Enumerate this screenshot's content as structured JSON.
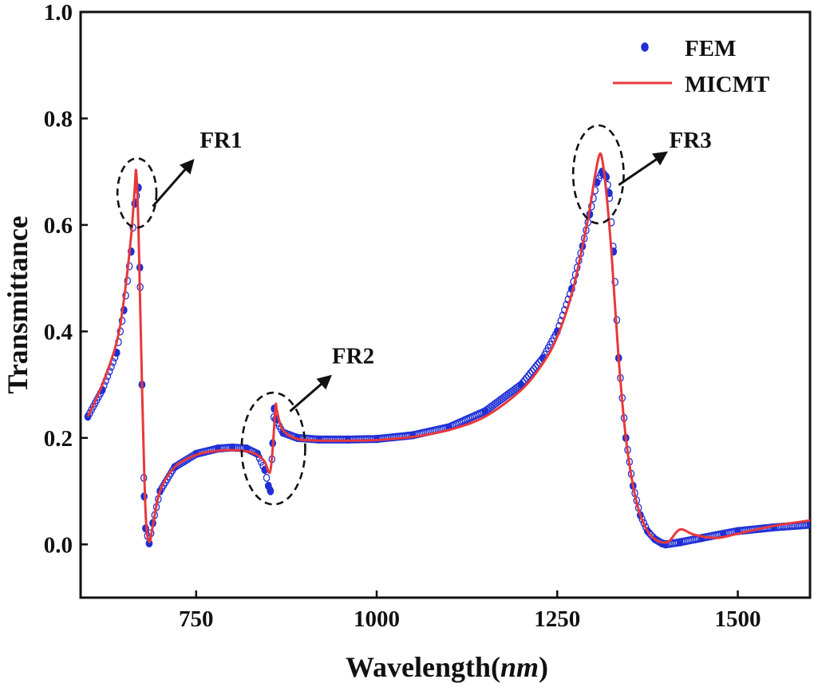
{
  "chart_data": {
    "type": "line",
    "title": "",
    "xlabel_prefix": "Wavelength(",
    "xlabel_unit": "nm",
    "xlabel_suffix": ")",
    "ylabel": "Transmittance",
    "xlim": [
      590,
      1600
    ],
    "ylim": [
      -0.1,
      1.0
    ],
    "xticks": [
      750,
      1000,
      1250,
      1500
    ],
    "xtick_labels": [
      "750",
      "1000",
      "1250",
      "1500"
    ],
    "yticks": [
      0.0,
      0.2,
      0.4,
      0.6,
      0.8,
      1.0
    ],
    "ytick_labels": [
      "0.0",
      "0.2",
      "0.4",
      "0.6",
      "0.8",
      "1.0"
    ],
    "grid": false,
    "legend_position": "top-right",
    "colors": {
      "fem": "#1f2fd6",
      "micmt": "#e8383b",
      "axis": "#111111",
      "annotation": "#111111"
    },
    "series": [
      {
        "name": "FEM",
        "style": "markers",
        "x": [
          600,
          620,
          640,
          650,
          660,
          665,
          670,
          672,
          675,
          678,
          680,
          685,
          690,
          700,
          720,
          750,
          780,
          800,
          820,
          835,
          845,
          850,
          853,
          856,
          858,
          860,
          870,
          890,
          920,
          960,
          1000,
          1050,
          1100,
          1150,
          1200,
          1230,
          1250,
          1270,
          1285,
          1295,
          1305,
          1312,
          1318,
          1322,
          1328,
          1335,
          1345,
          1355,
          1365,
          1375,
          1385,
          1395,
          1400,
          1420,
          1450,
          1480,
          1500,
          1550,
          1600
        ],
        "y": [
          0.24,
          0.29,
          0.36,
          0.44,
          0.55,
          0.64,
          0.67,
          0.52,
          0.3,
          0.09,
          0.03,
          0.002,
          0.04,
          0.1,
          0.145,
          0.17,
          0.18,
          0.182,
          0.18,
          0.17,
          0.14,
          0.11,
          0.1,
          0.19,
          0.255,
          0.235,
          0.21,
          0.2,
          0.197,
          0.197,
          0.198,
          0.205,
          0.22,
          0.25,
          0.3,
          0.35,
          0.4,
          0.48,
          0.56,
          0.62,
          0.68,
          0.7,
          0.69,
          0.66,
          0.55,
          0.35,
          0.2,
          0.11,
          0.055,
          0.025,
          0.01,
          0.002,
          0.0,
          0.004,
          0.012,
          0.02,
          0.025,
          0.032,
          0.037
        ]
      },
      {
        "name": "MICMT",
        "style": "line",
        "x": [
          600,
          620,
          640,
          650,
          660,
          665,
          667,
          670,
          675,
          680,
          685,
          690,
          700,
          720,
          750,
          780,
          800,
          820,
          835,
          845,
          852,
          856,
          860,
          862,
          870,
          890,
          920,
          960,
          1000,
          1050,
          1100,
          1150,
          1200,
          1230,
          1250,
          1270,
          1285,
          1295,
          1302,
          1308,
          1312,
          1318,
          1325,
          1335,
          1345,
          1355,
          1365,
          1375,
          1385,
          1395,
          1405,
          1420,
          1440,
          1470,
          1500,
          1550,
          1600
        ],
        "y": [
          0.24,
          0.3,
          0.38,
          0.46,
          0.58,
          0.67,
          0.7,
          0.6,
          0.3,
          0.06,
          0.005,
          0.035,
          0.1,
          0.145,
          0.168,
          0.176,
          0.177,
          0.175,
          0.168,
          0.155,
          0.135,
          0.18,
          0.26,
          0.25,
          0.215,
          0.198,
          0.195,
          0.195,
          0.196,
          0.202,
          0.215,
          0.24,
          0.29,
          0.34,
          0.39,
          0.47,
          0.56,
          0.63,
          0.69,
          0.73,
          0.725,
          0.66,
          0.55,
          0.35,
          0.2,
          0.11,
          0.055,
          0.025,
          0.01,
          0.004,
          0.006,
          0.028,
          0.018,
          0.012,
          0.02,
          0.035,
          0.045
        ]
      }
    ],
    "annotations": [
      {
        "label": "FR1",
        "circle_center": [
          668,
          0.66
        ],
        "circle_radius": [
          27,
          0.065
        ],
        "arrow_from": [
          690,
          0.635
        ],
        "arrow_to": [
          745,
          0.72
        ],
        "label_at": [
          755,
          0.745
        ]
      },
      {
        "label": "FR2",
        "circle_center": [
          857,
          0.18
        ],
        "circle_radius": [
          44,
          0.105
        ],
        "arrow_from": [
          880,
          0.25
        ],
        "arrow_to": [
          935,
          0.315
        ],
        "label_at": [
          938,
          0.34
        ]
      },
      {
        "label": "FR3",
        "circle_center": [
          1307,
          0.695
        ],
        "circle_radius": [
          35,
          0.092
        ],
        "arrow_from": [
          1335,
          0.675
        ],
        "arrow_to": [
          1400,
          0.735
        ],
        "label_at": [
          1405,
          0.745
        ]
      }
    ]
  }
}
